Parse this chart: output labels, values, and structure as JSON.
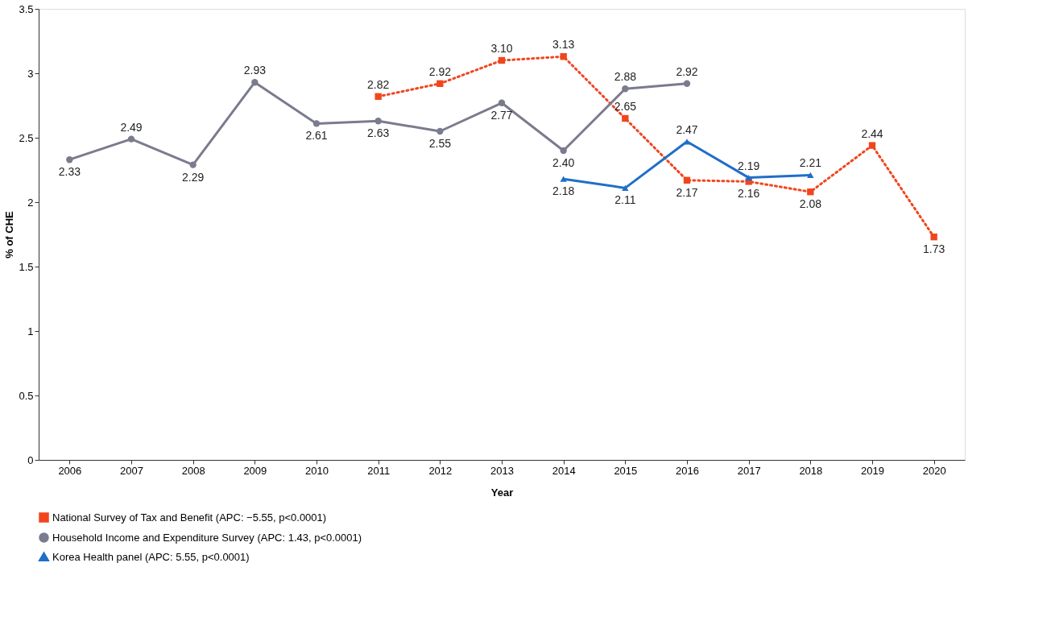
{
  "chart_data": {
    "type": "line",
    "xlabel": "Year",
    "ylabel": "% of CHE",
    "categories": [
      "2006",
      "2007",
      "2008",
      "2009",
      "2010",
      "2011",
      "2012",
      "2013",
      "2014",
      "2015",
      "2016",
      "2017",
      "2018",
      "2019",
      "2020"
    ],
    "ylim": [
      0,
      3.5
    ],
    "yticks": [
      0,
      0.5,
      1,
      1.5,
      2,
      2.5,
      3,
      3.5
    ],
    "grid": false,
    "legend": "bottom",
    "series": [
      {
        "name": "National Survey of Tax and Benefit (APC: −5.55, p<0.0001)",
        "color": "#f0461e",
        "line_style": "dotted",
        "marker": "square",
        "values": [
          null,
          null,
          null,
          null,
          null,
          2.82,
          2.92,
          3.1,
          3.13,
          2.65,
          2.17,
          2.16,
          2.08,
          2.44,
          1.73
        ],
        "value_labels": [
          null,
          null,
          null,
          null,
          null,
          "2.82",
          "2.92",
          "3.10",
          "3.13",
          "2.65",
          "2.17",
          "2.16",
          "2.08",
          "2.44",
          "1.73"
        ]
      },
      {
        "name": "Household Income and Expenditure Survey (APC: 1.43, p<0.0001)",
        "color": "#7b7b8e",
        "line_style": "solid",
        "marker": "circle",
        "values": [
          2.33,
          2.49,
          2.29,
          2.93,
          2.61,
          2.63,
          2.55,
          2.77,
          2.4,
          2.88,
          2.92,
          null,
          null,
          null,
          null
        ],
        "value_labels": [
          "2.33",
          "2.49",
          "2.29",
          "2.93",
          "2.61",
          "2.63",
          "2.55",
          "2.77",
          "2.40",
          "2.88",
          "2.92",
          null,
          null,
          null,
          null
        ]
      },
      {
        "name": "Korea Health panel (APC: 5.55, p<0.0001)",
        "color": "#1f6fc8",
        "line_style": "solid",
        "marker": "triangle",
        "values": [
          null,
          null,
          null,
          null,
          null,
          null,
          null,
          null,
          2.18,
          2.11,
          2.47,
          2.19,
          2.21,
          null,
          null
        ],
        "value_labels": [
          null,
          null,
          null,
          null,
          null,
          null,
          null,
          null,
          "2.18",
          "2.11",
          "2.47",
          "2.19",
          "2.21",
          null,
          null
        ]
      }
    ]
  }
}
